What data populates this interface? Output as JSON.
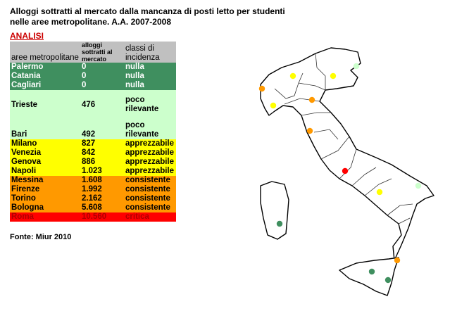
{
  "header": {
    "title": "Alloggi sottratti al mercato dalla mancanza di posti letto per studenti nelle aree metropolitane. A.A. 2007-2008",
    "subtitle": "ANALISI"
  },
  "table": {
    "headers": {
      "area": "aree metropolitane",
      "alloggi": "alloggi sottratti al mercato",
      "classe": "classi di incidenza"
    },
    "rows": [
      {
        "city": "Palermo",
        "value": "0",
        "class": "nulla",
        "level": "nulla"
      },
      {
        "city": "Catania",
        "value": "0",
        "class": "nulla",
        "level": "nulla"
      },
      {
        "city": "Cagliari",
        "value": "0",
        "class": "nulla",
        "level": "nulla"
      },
      {
        "city": "Trieste",
        "value": "476",
        "class": "poco rilevante",
        "level": "poco"
      },
      {
        "city": "Bari",
        "value": "492",
        "class": "poco rilevante",
        "level": "poco"
      },
      {
        "city": "Milano",
        "value": "827",
        "class": "apprezzabile",
        "level": "apprezzabile"
      },
      {
        "city": "Venezia",
        "value": "842",
        "class": "apprezzabile",
        "level": "apprezzabile"
      },
      {
        "city": "Genova",
        "value": "886",
        "class": "apprezzabile",
        "level": "apprezzabile"
      },
      {
        "city": "Napoli",
        "value": "1.023",
        "class": "apprezzabile",
        "level": "apprezzabile"
      },
      {
        "city": "Messina",
        "value": "1.608",
        "class": "consistente",
        "level": "consistente"
      },
      {
        "city": "Firenze",
        "value": "1.992",
        "class": "consistente",
        "level": "consistente"
      },
      {
        "city": "Torino",
        "value": "2.162",
        "class": "consistente",
        "level": "consistente"
      },
      {
        "city": "Bologna",
        "value": "5.608",
        "class": "consistente",
        "level": "consistente"
      },
      {
        "city": "Roma",
        "value": "10.560",
        "class": "critica",
        "level": "critica"
      }
    ]
  },
  "source": "Fonte: Miur 2010",
  "colors": {
    "nulla": "#3f8f5f",
    "poco": "#ccffcc",
    "apprezzabile": "#ffff00",
    "consistente": "#ff9900",
    "critica": "#ff0000",
    "header_bg": "#c0c0c0",
    "subtitle": "#cc0000"
  }
}
